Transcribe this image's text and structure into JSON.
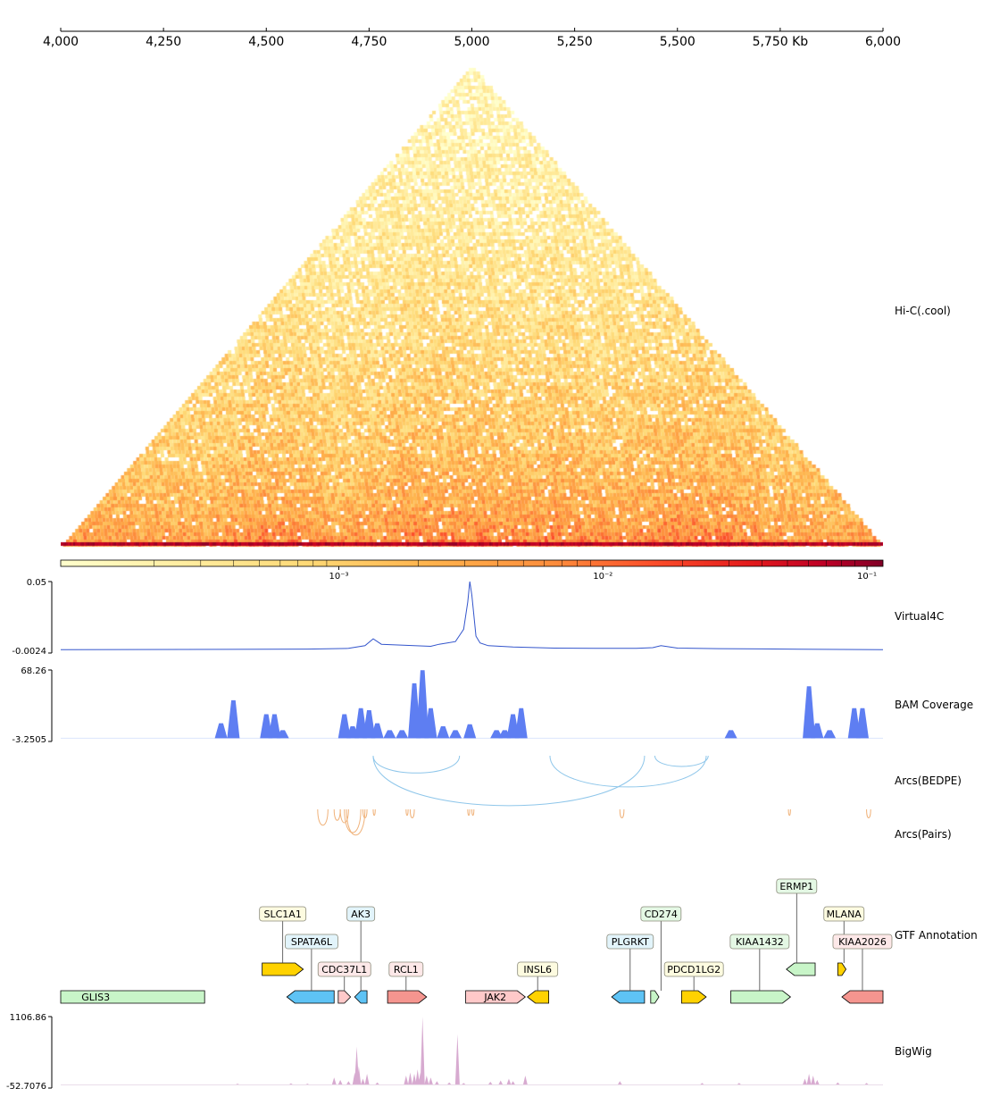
{
  "chart_data": {
    "type": "genome-browser",
    "x_axis": {
      "ticks": [
        "4,000",
        "4,250",
        "4,500",
        "4,750",
        "5,000",
        "5,250",
        "5,500",
        "5,750 Kb",
        "6,000"
      ],
      "tick_values": [
        4000,
        4250,
        4500,
        4750,
        5000,
        5250,
        5500,
        5750,
        6000
      ],
      "range": [
        4000,
        6000
      ]
    },
    "tracks": {
      "hic": {
        "label": "Hi-C(.cool)",
        "colormap": "YlOrRd",
        "scale": "log"
      },
      "colorbar": {
        "ticks": [
          "10⁻³",
          "10⁻²",
          "10⁻¹"
        ],
        "tick_values": [
          0.001,
          0.01,
          0.1
        ]
      },
      "virtual4c": {
        "label": "Virtual4C",
        "color": "#3355cc",
        "ymax_label": "0.05",
        "ymin_label": "-0.0024",
        "ylim": [
          -0.0024,
          0.05
        ],
        "x": [
          4000,
          4300,
          4600,
          4700,
          4740,
          4760,
          4780,
          4820,
          4860,
          4900,
          4920,
          4940,
          4960,
          4980,
          4990,
          4995,
          5000,
          5010,
          5020,
          5040,
          5100,
          5200,
          5300,
          5400,
          5440,
          5460,
          5500,
          5600,
          5700,
          5800,
          6000
        ],
        "y": [
          0.0,
          0.0002,
          0.0005,
          0.001,
          0.003,
          0.008,
          0.004,
          0.0035,
          0.003,
          0.0025,
          0.004,
          0.005,
          0.006,
          0.015,
          0.035,
          0.05,
          0.04,
          0.01,
          0.005,
          0.003,
          0.002,
          0.0012,
          0.001,
          0.001,
          0.0015,
          0.003,
          0.0012,
          0.0008,
          0.0006,
          0.0004,
          0.0
        ]
      },
      "bam": {
        "label": "BAM Coverage",
        "color": "#5e7ef2",
        "ymax_label": "68.26",
        "ymin_label": "-3.2505",
        "ylim": [
          -3.2505,
          68.26
        ],
        "peaks": [
          {
            "x": 4390,
            "h": 15
          },
          {
            "x": 4420,
            "h": 38
          },
          {
            "x": 4500,
            "h": 24
          },
          {
            "x": 4520,
            "h": 24
          },
          {
            "x": 4540,
            "h": 8
          },
          {
            "x": 4690,
            "h": 24
          },
          {
            "x": 4710,
            "h": 12
          },
          {
            "x": 4730,
            "h": 30
          },
          {
            "x": 4750,
            "h": 28
          },
          {
            "x": 4770,
            "h": 15
          },
          {
            "x": 4800,
            "h": 8
          },
          {
            "x": 4830,
            "h": 8
          },
          {
            "x": 4860,
            "h": 55
          },
          {
            "x": 4880,
            "h": 68
          },
          {
            "x": 4900,
            "h": 30
          },
          {
            "x": 4930,
            "h": 12
          },
          {
            "x": 4960,
            "h": 8
          },
          {
            "x": 4995,
            "h": 14
          },
          {
            "x": 5060,
            "h": 8
          },
          {
            "x": 5080,
            "h": 8
          },
          {
            "x": 5100,
            "h": 24
          },
          {
            "x": 5120,
            "h": 30
          },
          {
            "x": 5630,
            "h": 8
          },
          {
            "x": 5820,
            "h": 52
          },
          {
            "x": 5840,
            "h": 15
          },
          {
            "x": 5870,
            "h": 8
          },
          {
            "x": 5930,
            "h": 30
          },
          {
            "x": 5950,
            "h": 30
          }
        ]
      },
      "arcs_bedpe": {
        "label": "Arcs(BEDPE)",
        "color": "#8ec6ea",
        "arcs": [
          [
            4760,
            4970
          ],
          [
            4760,
            5420
          ],
          [
            5190,
            5570
          ],
          [
            5445,
            5575
          ]
        ]
      },
      "arcs_pairs": {
        "label": "Arcs(Pairs)",
        "color": "#f0b27a",
        "arcs": [
          [
            4625,
            4650
          ],
          [
            4665,
            4680
          ],
          [
            4680,
            4700
          ],
          [
            4690,
            4730
          ],
          [
            4695,
            4740
          ],
          [
            4735,
            4745
          ],
          [
            4760,
            4765
          ],
          [
            4840,
            4845
          ],
          [
            4850,
            4860
          ],
          [
            4990,
            4995
          ],
          [
            5000,
            5005
          ],
          [
            5360,
            5370
          ],
          [
            5770,
            5775
          ],
          [
            5960,
            5970
          ]
        ]
      },
      "gtf": {
        "label": "GTF Annotation",
        "genes": [
          {
            "name": "GLIS3",
            "start": 4000,
            "end": 4350,
            "strand": "none",
            "fill": "#c8f5c8",
            "label_bg": "#c8f5c8",
            "row": 0,
            "label_pos": "inside",
            "label_x": 4085
          },
          {
            "name": "SLC1A1",
            "start": 4490,
            "end": 4590,
            "strand": "+",
            "fill": "#ffd200",
            "label_bg": "#fdfbe0",
            "row": 1,
            "label_pos": "above",
            "label_x": 4540,
            "label_level": 3
          },
          {
            "name": "SPATA6L",
            "start": 4550,
            "end": 4665,
            "strand": "-",
            "fill": "#5ec3f5",
            "label_bg": "#e2f4fb",
            "row": 0,
            "label_pos": "above",
            "label_x": 4610,
            "label_level": 2
          },
          {
            "name": "AK3",
            "start": 4715,
            "end": 4745,
            "strand": "-",
            "fill": "#5ec3f5",
            "label_bg": "#e2f4fb",
            "row": 0,
            "label_pos": "above",
            "label_x": 4730,
            "label_level": 3
          },
          {
            "name": "CDC37L1",
            "start": 4675,
            "end": 4705,
            "strand": "+",
            "fill": "#ffc9c9",
            "label_bg": "#fde8e8",
            "row": 0,
            "label_pos": "above",
            "label_x": 4690,
            "label_level": 1
          },
          {
            "name": "RCL1",
            "start": 4795,
            "end": 4890,
            "strand": "+",
            "fill": "#f5958f",
            "label_bg": "#fde8e8",
            "row": 0,
            "label_pos": "above",
            "label_x": 4840,
            "label_level": 1
          },
          {
            "name": "JAK2",
            "start": 4985,
            "end": 5130,
            "strand": "+",
            "fill": "#ffc9c9",
            "label_bg": "#ffc9c9",
            "row": 0,
            "label_pos": "inside",
            "label_x": 5057
          },
          {
            "name": "INSL6",
            "start": 5135,
            "end": 5187,
            "strand": "-",
            "fill": "#ffd200",
            "label_bg": "#fdfbe0",
            "row": 0,
            "label_pos": "above",
            "label_x": 5160,
            "label_level": 1
          },
          {
            "name": "PLGRKT",
            "start": 5340,
            "end": 5420,
            "strand": "-",
            "fill": "#5ec3f5",
            "label_bg": "#e2f4fb",
            "row": 0,
            "label_pos": "above",
            "label_x": 5385,
            "label_level": 2
          },
          {
            "name": "CD274",
            "start": 5435,
            "end": 5455,
            "strand": "+",
            "fill": "#c8f5c8",
            "label_bg": "#e4f8e4",
            "row": 0,
            "label_pos": "above",
            "label_x": 5460,
            "label_level": 3
          },
          {
            "name": "PDCD1LG2",
            "start": 5510,
            "end": 5570,
            "strand": "+",
            "fill": "#ffd200",
            "label_bg": "#fdfbe0",
            "row": 0,
            "label_pos": "above",
            "label_x": 5540,
            "label_level": 1
          },
          {
            "name": "KIAA1432",
            "start": 5630,
            "end": 5775,
            "strand": "+",
            "fill": "#c8f5c8",
            "label_bg": "#e4f8e4",
            "row": 0,
            "label_pos": "above",
            "label_x": 5700,
            "label_level": 2
          },
          {
            "name": "ERMP1",
            "start": 5765,
            "end": 5835,
            "strand": "-",
            "fill": "#c8f5c8",
            "label_bg": "#e4f8e4",
            "row": 1,
            "label_pos": "above",
            "label_x": 5790,
            "label_level": 4
          },
          {
            "name": "MLANA",
            "start": 5890,
            "end": 5910,
            "strand": "+",
            "fill": "#ffd200",
            "label_bg": "#fdfbe0",
            "row": 1,
            "label_pos": "above",
            "label_x": 5905,
            "label_level": 3
          },
          {
            "name": "KIAA2026",
            "start": 5900,
            "end": 6000,
            "strand": "-",
            "fill": "#f5958f",
            "label_bg": "#fde8e8",
            "row": 0,
            "label_pos": "above",
            "label_x": 5950,
            "label_level": 2
          }
        ]
      },
      "bigwig": {
        "label": "BigWig",
        "color": "#d7aad0",
        "ymax_label": "1106.86",
        "ymin_label": "-52.7076",
        "ylim": [
          -52.7076,
          1106.86
        ],
        "peaks": [
          {
            "x": 4430,
            "h": 20
          },
          {
            "x": 4560,
            "h": 25
          },
          {
            "x": 4600,
            "h": 20
          },
          {
            "x": 4665,
            "h": 120
          },
          {
            "x": 4680,
            "h": 80
          },
          {
            "x": 4700,
            "h": 60
          },
          {
            "x": 4715,
            "h": 200
          },
          {
            "x": 4720,
            "h": 620
          },
          {
            "x": 4725,
            "h": 300
          },
          {
            "x": 4735,
            "h": 100
          },
          {
            "x": 4745,
            "h": 180
          },
          {
            "x": 4770,
            "h": 40
          },
          {
            "x": 4840,
            "h": 150
          },
          {
            "x": 4850,
            "h": 200
          },
          {
            "x": 4860,
            "h": 180
          },
          {
            "x": 4868,
            "h": 250
          },
          {
            "x": 4875,
            "h": 200
          },
          {
            "x": 4880,
            "h": 1106
          },
          {
            "x": 4890,
            "h": 150
          },
          {
            "x": 4900,
            "h": 120
          },
          {
            "x": 4915,
            "h": 60
          },
          {
            "x": 4945,
            "h": 40
          },
          {
            "x": 4965,
            "h": 820
          },
          {
            "x": 4980,
            "h": 30
          },
          {
            "x": 5045,
            "h": 50
          },
          {
            "x": 5070,
            "h": 70
          },
          {
            "x": 5090,
            "h": 100
          },
          {
            "x": 5100,
            "h": 60
          },
          {
            "x": 5130,
            "h": 150
          },
          {
            "x": 5360,
            "h": 60
          },
          {
            "x": 5560,
            "h": 30
          },
          {
            "x": 5650,
            "h": 30
          },
          {
            "x": 5810,
            "h": 100
          },
          {
            "x": 5820,
            "h": 180
          },
          {
            "x": 5830,
            "h": 150
          },
          {
            "x": 5840,
            "h": 80
          },
          {
            "x": 5890,
            "h": 40
          },
          {
            "x": 5960,
            "h": 30
          }
        ]
      }
    }
  }
}
